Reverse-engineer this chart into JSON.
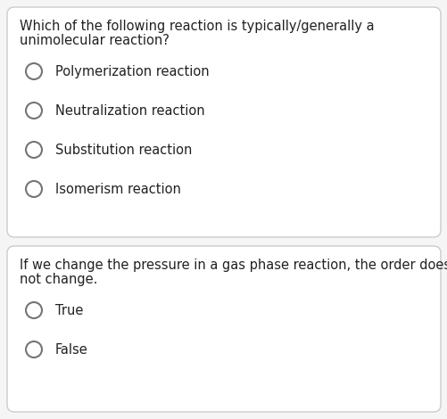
{
  "bg_color": "#f5f5f5",
  "card_bg": "#ffffff",
  "border_color": "#cccccc",
  "text_color": "#212121",
  "circle_edge_color": "#757575",
  "q1_text_line1": "Which of the following reaction is typically/generally a",
  "q1_text_line2": "unimolecular reaction?",
  "q1_options": [
    "Polymerization reaction",
    "Neutralization reaction",
    "Substitution reaction",
    "Isomerism reaction"
  ],
  "q2_text_line1": "If we change the pressure in a gas phase reaction, the order does",
  "q2_text_line2": "not change.",
  "q2_options": [
    "True",
    "False"
  ],
  "font_size_question": 10.5,
  "font_size_option": 10.5,
  "fig_width": 5.02,
  "fig_height": 4.7,
  "dpi": 100
}
